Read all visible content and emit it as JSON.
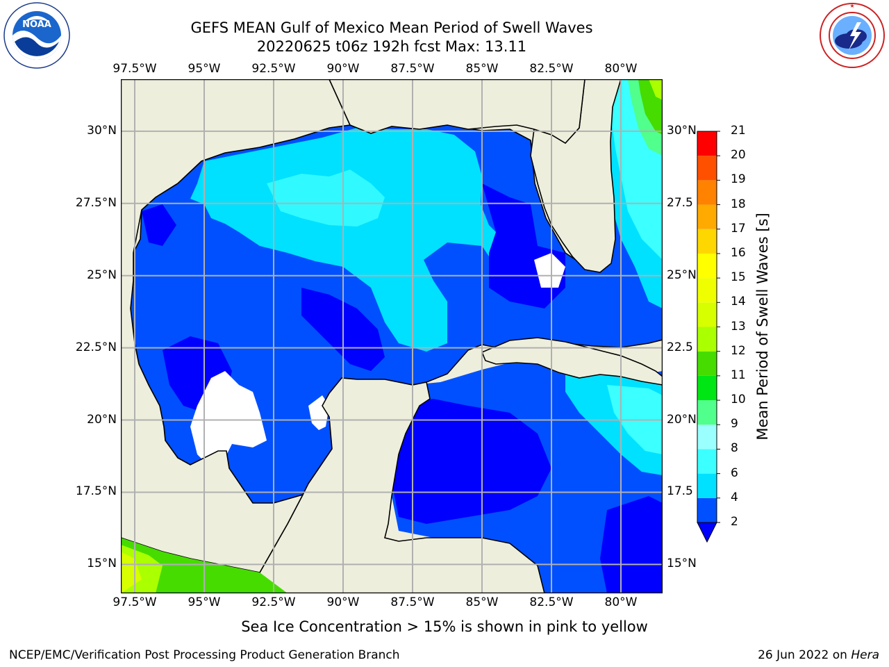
{
  "header": {
    "title_line1": "GEFS MEAN Gulf of Mexico Mean Period of Swell Waves",
    "title_line2": "20220625 t06z 192h fcst   Max: 13.11"
  },
  "logos": {
    "noaa_text": "NOAA",
    "noaa_ring_text": "NATIONAL OCEANIC AND ATMOSPHERIC ADMINISTRATION · U.S. DEPARTMENT OF COMMERCE",
    "nws_ring_text": "NATIONAL WEATHER SERVICE"
  },
  "map": {
    "lon_labels": [
      "97.5°W",
      "95°W",
      "92.5°W",
      "90°W",
      "87.5°W",
      "85°W",
      "82.5°W",
      "80°W"
    ],
    "lat_labels_left": [
      "30°N",
      "27.5°N",
      "25°N",
      "22.5°N",
      "20°N",
      "17.5°N",
      "15°N"
    ],
    "lat_labels_right": [
      "30°N",
      "27.5",
      "25°N",
      "22.5",
      "20°N",
      "17.5",
      "15°N"
    ],
    "lon_range": [
      -98,
      -78.5
    ],
    "lat_range": [
      14,
      31.8
    ],
    "colors": {
      "land": "#eeeedd",
      "no_data": "#ffffff",
      "gridline": "#b0b0b0",
      "coastline": "#000000"
    }
  },
  "colorbar": {
    "label": "Mean Period of Swell Waves [s]",
    "ticks": [
      "2",
      "4",
      "6",
      "8",
      "9",
      "10",
      "11",
      "12",
      "13",
      "14",
      "15",
      "16",
      "17",
      "18",
      "19",
      "20",
      "21"
    ],
    "bins": [
      {
        "from": 2,
        "to": 4,
        "color": "#0050ff"
      },
      {
        "from": 4,
        "to": 6,
        "color": "#00e1ff"
      },
      {
        "from": 6,
        "to": 8,
        "color": "#3cffff"
      },
      {
        "from": 8,
        "to": 9,
        "color": "#9bffff"
      },
      {
        "from": 9,
        "to": 10,
        "color": "#50ff8c"
      },
      {
        "from": 10,
        "to": 11,
        "color": "#00e614"
      },
      {
        "from": 11,
        "to": 12,
        "color": "#46dc00"
      },
      {
        "from": 12,
        "to": 13,
        "color": "#aaff00"
      },
      {
        "from": 13,
        "to": 14,
        "color": "#d7ff00"
      },
      {
        "from": 14,
        "to": 15,
        "color": "#f0ff00"
      },
      {
        "from": 15,
        "to": 16,
        "color": "#ffff00"
      },
      {
        "from": 16,
        "to": 17,
        "color": "#ffd700"
      },
      {
        "from": 17,
        "to": 18,
        "color": "#ffaa00"
      },
      {
        "from": 18,
        "to": 19,
        "color": "#ff8200"
      },
      {
        "from": 19,
        "to": 20,
        "color": "#ff5000"
      },
      {
        "from": 20,
        "to": 21,
        "color": "#ff0000"
      }
    ],
    "under_color": "#0000ff"
  },
  "caption": "Sea Ice Concentration > 15% is shown in pink to yellow",
  "footer": {
    "left": "NCEP/EMC/Verification Post Processing Product Generation Branch",
    "right_prefix": "26 Jun 2022 on ",
    "right_host": "Hera"
  }
}
